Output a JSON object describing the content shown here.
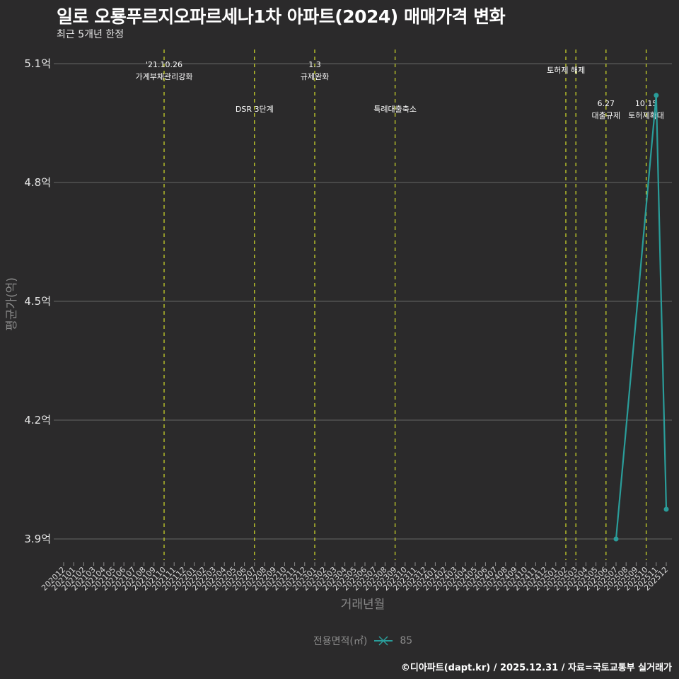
{
  "header": {
    "title": "일로 오룡푸르지오파르세나1차 아파트(2024) 매매가격 변화",
    "subtitle": "최근 5개년 한정"
  },
  "axes": {
    "ylabel": "평균가(억)",
    "xlabel": "거래년월"
  },
  "legend": {
    "title": "전용면적(㎡)",
    "items": [
      {
        "label": "85",
        "color": "#2a9d9a"
      }
    ]
  },
  "footer": {
    "credit": "©디아파트(dapt.kr) / 2025.12.31 / 자료=국토교통부 실거래가"
  },
  "colors": {
    "background": "#2b2a2b",
    "grid": "#5a5a5a",
    "series": "#2a9d9a",
    "event_line": "#c8d22a"
  },
  "chart_data": {
    "type": "line",
    "title": "일로 오룡푸르지오파르세나1차 아파트(2024) 매매가격 변화",
    "subtitle": "최근 5개년 한정",
    "xlabel": "거래년월",
    "ylabel": "평균가(억)",
    "ylim": [
      3.85,
      5.15
    ],
    "yticks": [
      3.9,
      4.2,
      4.5,
      4.8,
      5.1
    ],
    "ytick_labels": [
      "3.9억",
      "4.2억",
      "4.5억",
      "4.8억",
      "5.1억"
    ],
    "grid": true,
    "legend_position": "bottom",
    "categories": [
      "202012",
      "202101",
      "202102",
      "202103",
      "202104",
      "202105",
      "202106",
      "202107",
      "202108",
      "202109",
      "202110",
      "202111",
      "202112",
      "202201",
      "202202",
      "202203",
      "202204",
      "202205",
      "202206",
      "202207",
      "202208",
      "202209",
      "202210",
      "202211",
      "202212",
      "202301",
      "202302",
      "202303",
      "202304",
      "202305",
      "202306",
      "202307",
      "202308",
      "202309",
      "202310",
      "202311",
      "202312",
      "202401",
      "202402",
      "202403",
      "202404",
      "202405",
      "202406",
      "202407",
      "202408",
      "202409",
      "202410",
      "202411",
      "202412",
      "202501",
      "202502",
      "202503",
      "202504",
      "202505",
      "202506",
      "202507",
      "202508",
      "202509",
      "202510",
      "202511",
      "202512"
    ],
    "series": [
      {
        "name": "85",
        "points": [
          {
            "x": "202507",
            "y": 3.9
          },
          {
            "x": "202511",
            "y": 5.02
          },
          {
            "x": "202512",
            "y": 3.975
          }
        ]
      }
    ],
    "events": [
      {
        "x": "202110",
        "date": "'21.10.26",
        "label": "가계부채관리강화",
        "row": 0
      },
      {
        "x": "202207",
        "date": "",
        "label": "DSR 3단계",
        "row": 1
      },
      {
        "x": "202301",
        "date": "1.3",
        "label": "규제완화",
        "row": 0
      },
      {
        "x": "202309",
        "date": "",
        "label": "특례대출축소",
        "row": 1
      },
      {
        "x": "202502",
        "date": "",
        "label": "",
        "row": 0
      },
      {
        "x": "202503",
        "date": "",
        "label": "토허제 해제",
        "row": 0
      },
      {
        "x": "202506",
        "date": "6.27",
        "label": "대출규제",
        "row": 1
      },
      {
        "x": "202510",
        "date": "10.15",
        "label": "토허제확대",
        "row": 1
      }
    ]
  }
}
